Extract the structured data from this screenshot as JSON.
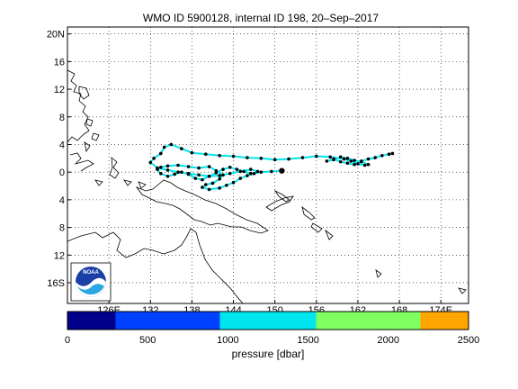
{
  "title": "WMO ID 5900128, internal ID 198, 20–Sep–2017",
  "map": {
    "lon_range": [
      120,
      178
    ],
    "lat_range": [
      -19,
      21
    ],
    "lat_ticks": [
      {
        "value": 20,
        "label": "20N"
      },
      {
        "value": 16,
        "label": "16"
      },
      {
        "value": 12,
        "label": "12"
      },
      {
        "value": 8,
        "label": "8"
      },
      {
        "value": 4,
        "label": "4"
      },
      {
        "value": 0,
        "label": "0"
      },
      {
        "value": -4,
        "label": "4"
      },
      {
        "value": -8,
        "label": "8"
      },
      {
        "value": -12,
        "label": "12"
      },
      {
        "value": -16,
        "label": "16S"
      }
    ],
    "lon_ticks": [
      {
        "value": 126,
        "label": "126E"
      },
      {
        "value": 132,
        "label": "132"
      },
      {
        "value": 138,
        "label": "138"
      },
      {
        "value": 144,
        "label": "144"
      },
      {
        "value": 150,
        "label": "150"
      },
      {
        "value": 156,
        "label": "156"
      },
      {
        "value": 162,
        "label": "162"
      },
      {
        "value": 168,
        "label": "168"
      },
      {
        "value": 174,
        "label": "174E"
      }
    ],
    "grid": "dotted",
    "logo": "NOAA",
    "track_color": "#00e5ee",
    "point_color": "#000000"
  },
  "colorbar": {
    "label": "pressure [dbar]",
    "ticks": [
      "0",
      "500",
      "1000",
      "1500",
      "2000",
      "2500"
    ],
    "range": [
      0,
      2500
    ],
    "segments": [
      {
        "from": 0,
        "to": 300,
        "color": "#00008c"
      },
      {
        "from": 300,
        "to": 950,
        "color": "#0040ff"
      },
      {
        "from": 950,
        "to": 1550,
        "color": "#00e5ee"
      },
      {
        "from": 1550,
        "to": 2200,
        "color": "#80ff60"
      },
      {
        "from": 2200,
        "to": 2500,
        "color": "#ffa500"
      }
    ]
  },
  "chart_data": {
    "type": "scatter",
    "title": "WMO ID 5900128, internal ID 198, 20–Sep–2017",
    "xlabel": "",
    "ylabel": "",
    "series": [
      {
        "x": [
          151.0,
          149.5,
          148.0,
          146.5,
          145.5,
          144.5,
          143.5,
          142.5,
          141.5,
          140.5,
          139.5,
          138.5,
          137.5,
          136.5,
          135.5,
          134.5,
          133.5,
          133.0,
          133.5,
          134.5,
          136.0,
          137.5,
          139.0,
          140.5,
          141.5,
          142.5,
          142.0,
          141.0,
          140.0,
          139.5,
          140.5,
          142.0,
          143.0,
          144.0,
          145.0,
          146.0,
          147.0,
          147.5,
          146.5,
          145.0,
          143.5,
          142.0,
          140.5,
          139.0,
          137.5,
          136.0,
          134.5,
          133.0,
          132.0,
          132.5,
          133.5,
          134.0,
          135.0,
          136.5,
          138.0,
          140.0,
          142.0,
          144.0,
          146.0,
          148.0,
          150.0,
          152.0,
          154.0,
          156.0,
          158.0,
          160.0,
          161.0,
          162.0,
          163.0,
          163.5,
          162.5,
          161.5,
          160.5,
          159.5,
          158.5,
          157.5,
          158.5,
          159.5,
          160.5,
          161.5,
          162.5,
          163.5,
          164.5,
          165.5,
          166.5,
          167.0
        ],
        "y": [
          0.2,
          0.1,
          0.0,
          -0.2,
          0.1,
          0.4,
          0.7,
          0.4,
          -0.1,
          -0.6,
          -1.1,
          -0.9,
          -0.3,
          0.0,
          -0.3,
          -0.6,
          -0.2,
          0.4,
          0.7,
          0.9,
          1.0,
          0.8,
          0.6,
          0.8,
          0.2,
          -0.4,
          -1.0,
          -1.6,
          -1.8,
          -2.2,
          -2.5,
          -2.3,
          -1.9,
          -1.5,
          -0.9,
          -0.5,
          -0.2,
          0.1,
          0.4,
          0.1,
          -0.2,
          -0.5,
          -0.6,
          -0.4,
          -0.2,
          0.0,
          0.3,
          0.6,
          1.4,
          2.0,
          2.7,
          3.6,
          4.0,
          3.4,
          2.8,
          2.6,
          2.4,
          2.3,
          2.1,
          2.0,
          1.8,
          1.9,
          2.1,
          2.3,
          2.2,
          1.9,
          1.6,
          1.2,
          1.0,
          1.1,
          1.5,
          1.7,
          2.0,
          2.2,
          1.8,
          1.6,
          1.9,
          1.5,
          1.3,
          1.1,
          1.6,
          1.9,
          2.1,
          2.4,
          2.6,
          2.7
        ]
      }
    ]
  }
}
